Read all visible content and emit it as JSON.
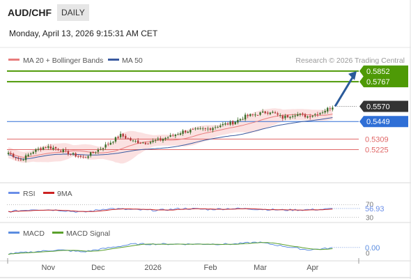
{
  "header": {
    "symbol": "AUD/CHF",
    "timeframe": "DAILY",
    "datetime": "Monday, April 13, 2026 9:15:31 AM CET"
  },
  "legend": {
    "ma20": "MA 20 + Bollinger Bands",
    "ma50": "MA 50",
    "rsi": "RSI",
    "rsi_ma": "9MA",
    "macd": "MACD",
    "macd_signal": "MACD Signal"
  },
  "credit": "Research © 2026 Trading Central",
  "colors": {
    "resistance": "#4e9a06",
    "support": "#e06666",
    "price": "#333333",
    "pivot": "#2f6fd6",
    "arrow": "#2a5a9a",
    "ma20": "#e87c7c",
    "ma50": "#3a5aa0",
    "bollinger_fill": "#fadcdc",
    "candle_up": "#3a6e2a",
    "candle_down": "#b23a3a",
    "rsi": "#6a8ee8",
    "rsi_ma": "#cc2222",
    "macd": "#5b8de0",
    "macd_signal": "#5aa02c"
  },
  "chart_data": [
    {
      "type": "candlestick",
      "series": [
        "price",
        "MA 20 + Bollinger Bands",
        "MA 50"
      ],
      "x_tick_labels": [
        "Nov",
        "Dec",
        "2026",
        "Feb",
        "Mar",
        "Apr"
      ],
      "ylim": [
        0.496,
        0.5885
      ],
      "levels": [
        {
          "value": 0.5852,
          "label": "0.5852",
          "kind": "resistance"
        },
        {
          "value": 0.5767,
          "label": "0.5767",
          "kind": "resistance"
        },
        {
          "value": 0.557,
          "label": "0.5570",
          "kind": "price"
        },
        {
          "value": 0.5449,
          "label": "0.5449",
          "kind": "pivot"
        },
        {
          "value": 0.5309,
          "label": "0.5309",
          "kind": "support"
        },
        {
          "value": 0.5225,
          "label": "0.5225",
          "kind": "support"
        }
      ],
      "close_points": [
        [
          0,
          0.52
        ],
        [
          5,
          0.514
        ],
        [
          10,
          0.521
        ],
        [
          15,
          0.525
        ],
        [
          20,
          0.523
        ],
        [
          25,
          0.519
        ],
        [
          30,
          0.516
        ],
        [
          35,
          0.521
        ],
        [
          40,
          0.527
        ],
        [
          45,
          0.534
        ],
        [
          50,
          0.529
        ],
        [
          55,
          0.528
        ],
        [
          60,
          0.53
        ],
        [
          65,
          0.533
        ],
        [
          70,
          0.537
        ],
        [
          75,
          0.538
        ],
        [
          80,
          0.539
        ],
        [
          85,
          0.542
        ],
        [
          90,
          0.544
        ],
        [
          95,
          0.549
        ],
        [
          100,
          0.551
        ],
        [
          105,
          0.553
        ],
        [
          110,
          0.548
        ],
        [
          115,
          0.551
        ],
        [
          120,
          0.549
        ],
        [
          125,
          0.552
        ],
        [
          130,
          0.557
        ]
      ],
      "projection": [
        [
          0.557
        ],
        [
          0.5852
        ]
      ]
    },
    {
      "type": "line",
      "name": "RSI",
      "series": [
        "RSI",
        "9MA"
      ],
      "y_tick_labels": [
        "70",
        "30"
      ],
      "ylim": [
        20,
        80
      ],
      "last_value": "56.93",
      "points": [
        [
          0,
          48
        ],
        [
          10,
          55
        ],
        [
          20,
          53
        ],
        [
          30,
          46
        ],
        [
          40,
          58
        ],
        [
          50,
          54
        ],
        [
          60,
          52
        ],
        [
          70,
          58
        ],
        [
          80,
          55
        ],
        [
          90,
          58
        ],
        [
          100,
          56
        ],
        [
          110,
          53
        ],
        [
          120,
          54
        ],
        [
          125,
          55
        ],
        [
          130,
          57
        ]
      ]
    },
    {
      "type": "line",
      "name": "MACD",
      "series": [
        "MACD",
        "MACD Signal"
      ],
      "y_tick_labels": [
        "0"
      ],
      "last_value": "0.00",
      "points": [
        [
          0,
          -0.003
        ],
        [
          10,
          -0.002
        ],
        [
          20,
          -0.001
        ],
        [
          30,
          -0.002
        ],
        [
          40,
          0.0
        ],
        [
          50,
          0.002
        ],
        [
          60,
          0.002
        ],
        [
          70,
          0.002
        ],
        [
          80,
          0.002
        ],
        [
          90,
          0.002
        ],
        [
          100,
          0.003
        ],
        [
          110,
          0.001
        ],
        [
          120,
          -0.001
        ],
        [
          130,
          0.0
        ]
      ]
    }
  ]
}
